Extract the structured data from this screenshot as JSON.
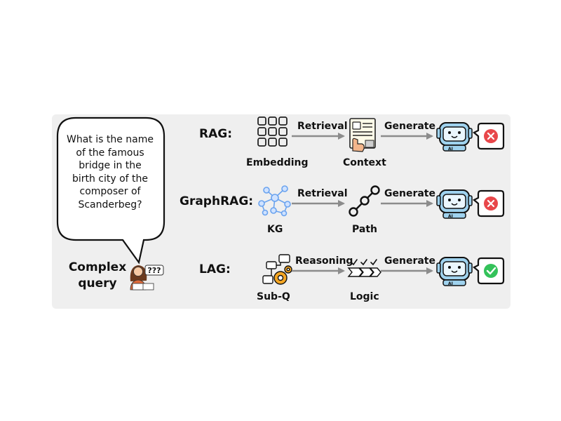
{
  "question": "What is the name of the famous bridge in the birth city of the composer of Scanderbeg?",
  "query_label": "Complex query",
  "rows": [
    {
      "title": "RAG:",
      "step1": "Embedding",
      "action": "Retrieval",
      "step2": "Context",
      "generate": "Generate",
      "result": "wrong"
    },
    {
      "title": "GraphRAG:",
      "step1": "KG",
      "action": "Retrieval",
      "step2": "Path",
      "generate": "Generate",
      "result": "wrong"
    },
    {
      "title": "LAG:",
      "step1": "Sub-Q",
      "action": "Reasoning",
      "step2": "Logic",
      "generate": "Generate",
      "result": "correct"
    }
  ],
  "icons": {
    "robot": "robot-ai-icon",
    "wrong": "red-x-icon",
    "correct": "green-check-icon",
    "person": "person-thinking-icon"
  },
  "colors": {
    "panel": "#efefef",
    "arrow": "#8c8c8c",
    "robot_blue": "#9fd2ee",
    "wrong_red": "#e8474a",
    "correct_green": "#34c25a",
    "kg_blue": "#6aa3ef"
  },
  "person_bubble": "???",
  "ai_tag": "AI"
}
